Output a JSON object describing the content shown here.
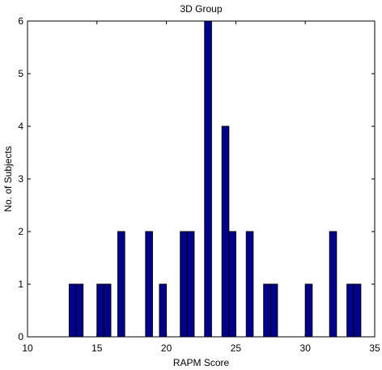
{
  "chart_data": {
    "type": "bar",
    "title": "3D Group",
    "xlabel": "RAPM Score",
    "ylabel": "No. of Subjects",
    "xlim": [
      10,
      35
    ],
    "ylim": [
      0,
      6
    ],
    "xticks": [
      10,
      15,
      20,
      25,
      30,
      35
    ],
    "yticks": [
      0,
      1,
      2,
      3,
      4,
      5,
      6
    ],
    "grid": false,
    "colors": {
      "bar_fill": "#00008f",
      "bar_edge": "#000000",
      "background": "#ffffff",
      "axis": "#000000"
    },
    "bins": [
      {
        "x": 13.25,
        "value": 1
      },
      {
        "x": 13.75,
        "value": 1
      },
      {
        "x": 15.25,
        "value": 1
      },
      {
        "x": 15.75,
        "value": 1
      },
      {
        "x": 16.75,
        "value": 2
      },
      {
        "x": 18.75,
        "value": 2
      },
      {
        "x": 19.75,
        "value": 1
      },
      {
        "x": 21.25,
        "value": 2
      },
      {
        "x": 21.75,
        "value": 2
      },
      {
        "x": 23.0,
        "value": 6
      },
      {
        "x": 24.25,
        "value": 4
      },
      {
        "x": 24.75,
        "value": 2
      },
      {
        "x": 26.0,
        "value": 2
      },
      {
        "x": 27.25,
        "value": 1
      },
      {
        "x": 27.75,
        "value": 1
      },
      {
        "x": 30.25,
        "value": 1
      },
      {
        "x": 32.0,
        "value": 2
      },
      {
        "x": 33.25,
        "value": 1
      },
      {
        "x": 33.75,
        "value": 1
      }
    ]
  }
}
